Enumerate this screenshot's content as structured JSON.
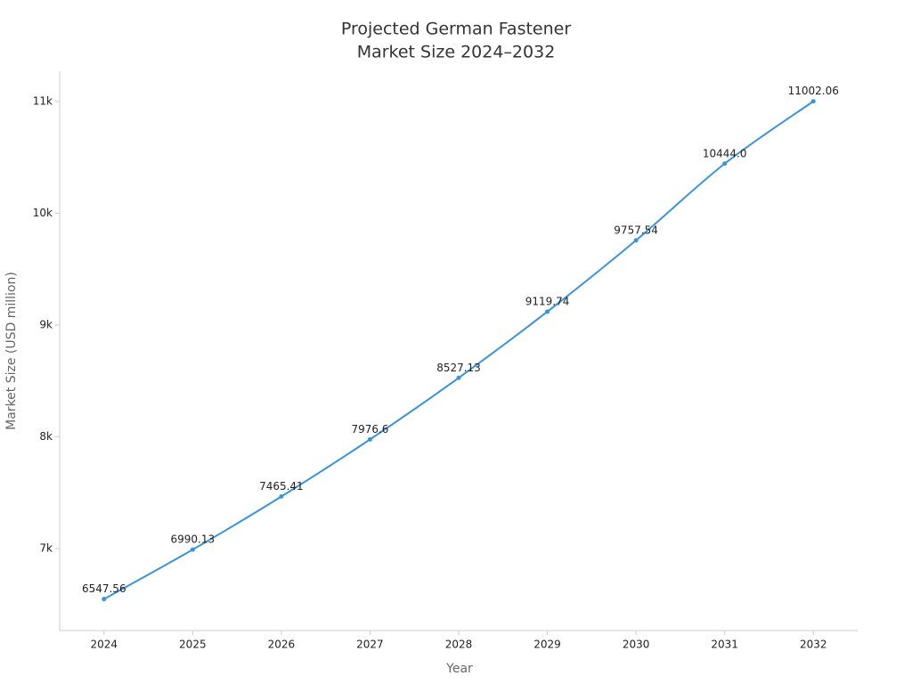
{
  "chart_data": {
    "type": "line",
    "title": [
      "Projected German Fastener",
      "Market Size 2024–2032"
    ],
    "x_label": "Year",
    "y_label": "Market Size (USD million)",
    "x": [
      2024,
      2025,
      2026,
      2027,
      2028,
      2029,
      2030,
      2031,
      2032
    ],
    "series": [
      {
        "color": "#3a94dc",
        "values": [
          6547.56,
          6990.13,
          7465.41,
          7976.6,
          8527.13,
          9119.74,
          9757.54,
          10444.0,
          11002.06
        ],
        "value_labels": [
          "6547.56",
          "6990.13",
          "7465.41",
          "7976.6",
          "8527.13",
          "9119.74",
          "9757.54",
          "10444.0",
          "11002.06"
        ]
      }
    ],
    "xlim": [
      2023.5,
      2032.5
    ],
    "xticks": [
      2024,
      2025,
      2026,
      2027,
      2028,
      2029,
      2030,
      2031,
      2032
    ],
    "ylim": [
      6266,
      11271
    ],
    "yticks": [
      {
        "value": 7000,
        "label": "7k"
      },
      {
        "value": 8000,
        "label": "8k"
      },
      {
        "value": 9000,
        "label": "9k"
      },
      {
        "value": 10000,
        "label": "10k"
      },
      {
        "value": 11000,
        "label": "11k"
      }
    ],
    "grid": false
  }
}
